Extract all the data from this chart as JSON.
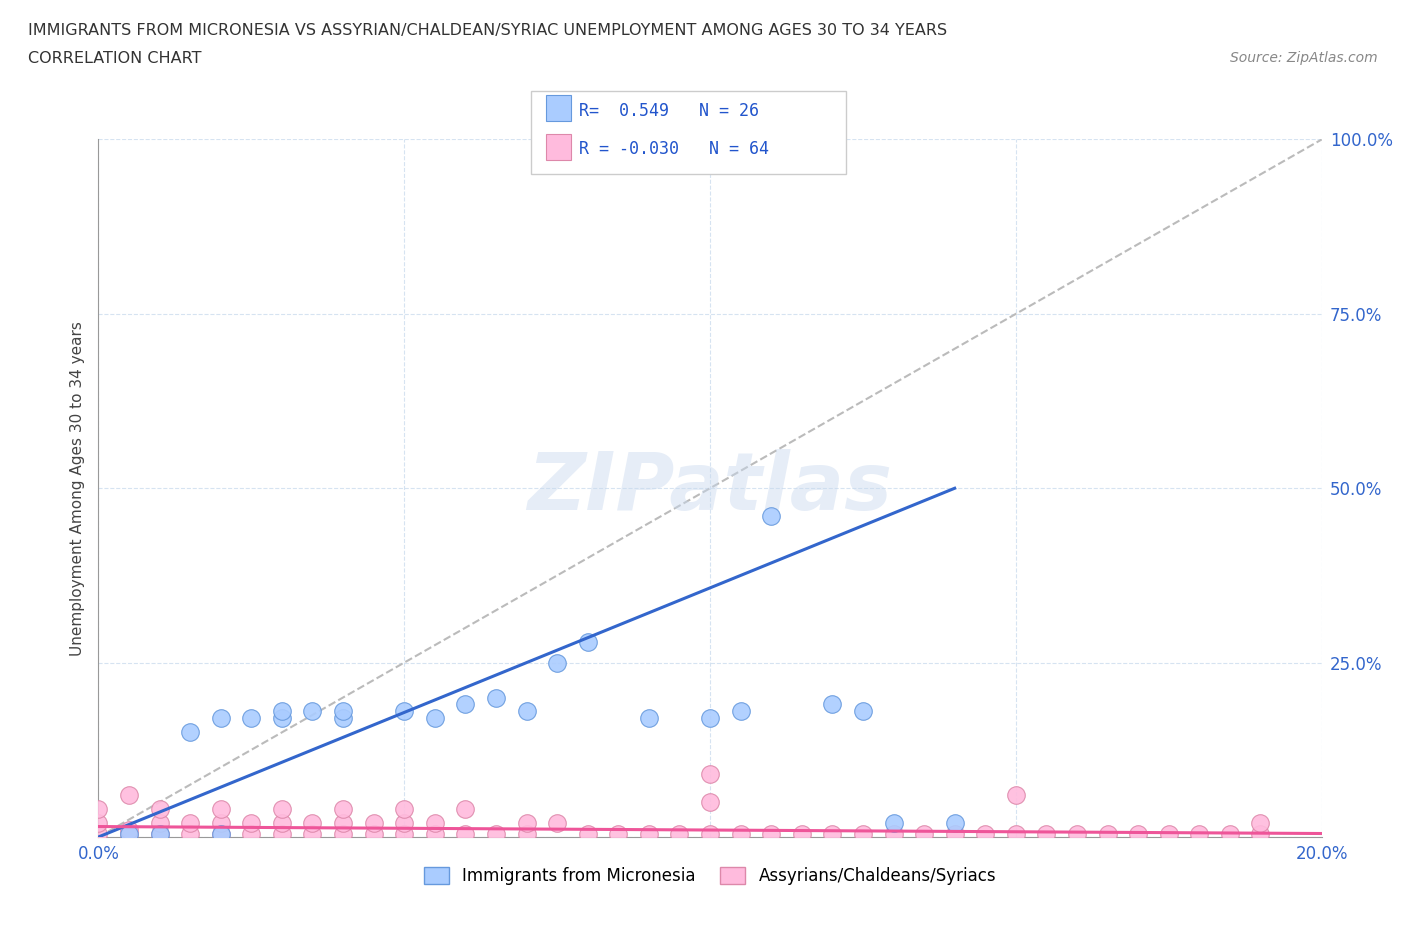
{
  "title_line1": "IMMIGRANTS FROM MICRONESIA VS ASSYRIAN/CHALDEAN/SYRIAC UNEMPLOYMENT AMONG AGES 30 TO 34 YEARS",
  "title_line2": "CORRELATION CHART",
  "source_text": "Source: ZipAtlas.com",
  "watermark": "ZIPatlas",
  "ylabel": "Unemployment Among Ages 30 to 34 years",
  "xlim": [
    0.0,
    0.2
  ],
  "ylim": [
    0.0,
    1.0
  ],
  "blue_color": "#aaccff",
  "pink_color": "#ffbbdd",
  "blue_edge_color": "#6699dd",
  "pink_edge_color": "#dd88aa",
  "blue_line_color": "#3366cc",
  "pink_line_color": "#ee5599",
  "ref_line_color": "#bbbbbb",
  "blue_line_x0": 0.0,
  "blue_line_y0": 0.0,
  "blue_line_x1": 0.14,
  "blue_line_y1": 0.5,
  "pink_line_x0": 0.0,
  "pink_line_y0": 0.015,
  "pink_line_x1": 0.2,
  "pink_line_y1": 0.005,
  "blue_x": [
    0.005,
    0.01,
    0.015,
    0.02,
    0.02,
    0.025,
    0.03,
    0.03,
    0.035,
    0.04,
    0.04,
    0.05,
    0.055,
    0.06,
    0.065,
    0.07,
    0.075,
    0.08,
    0.09,
    0.1,
    0.105,
    0.11,
    0.12,
    0.125,
    0.13,
    0.14
  ],
  "blue_y": [
    0.005,
    0.005,
    0.15,
    0.005,
    0.17,
    0.17,
    0.17,
    0.18,
    0.18,
    0.17,
    0.18,
    0.18,
    0.17,
    0.19,
    0.2,
    0.18,
    0.25,
    0.28,
    0.17,
    0.17,
    0.18,
    0.46,
    0.19,
    0.18,
    0.02,
    0.02
  ],
  "pink_x": [
    0.0,
    0.0,
    0.0,
    0.005,
    0.005,
    0.005,
    0.01,
    0.01,
    0.01,
    0.015,
    0.015,
    0.02,
    0.02,
    0.02,
    0.025,
    0.025,
    0.03,
    0.03,
    0.03,
    0.035,
    0.035,
    0.04,
    0.04,
    0.04,
    0.045,
    0.045,
    0.05,
    0.05,
    0.05,
    0.055,
    0.055,
    0.06,
    0.06,
    0.065,
    0.07,
    0.07,
    0.075,
    0.08,
    0.085,
    0.09,
    0.095,
    0.1,
    0.105,
    0.11,
    0.115,
    0.12,
    0.125,
    0.13,
    0.135,
    0.14,
    0.145,
    0.15,
    0.155,
    0.16,
    0.165,
    0.17,
    0.175,
    0.18,
    0.185,
    0.19,
    0.1,
    0.1,
    0.15,
    0.19
  ],
  "pink_y": [
    0.005,
    0.02,
    0.04,
    0.005,
    0.01,
    0.06,
    0.005,
    0.02,
    0.04,
    0.005,
    0.02,
    0.005,
    0.02,
    0.04,
    0.005,
    0.02,
    0.005,
    0.02,
    0.04,
    0.005,
    0.02,
    0.005,
    0.02,
    0.04,
    0.005,
    0.02,
    0.005,
    0.02,
    0.04,
    0.005,
    0.02,
    0.005,
    0.04,
    0.005,
    0.005,
    0.02,
    0.02,
    0.005,
    0.005,
    0.005,
    0.005,
    0.005,
    0.005,
    0.005,
    0.005,
    0.005,
    0.005,
    0.005,
    0.005,
    0.005,
    0.005,
    0.005,
    0.005,
    0.005,
    0.005,
    0.005,
    0.005,
    0.005,
    0.005,
    0.005,
    0.09,
    0.05,
    0.06,
    0.02
  ]
}
